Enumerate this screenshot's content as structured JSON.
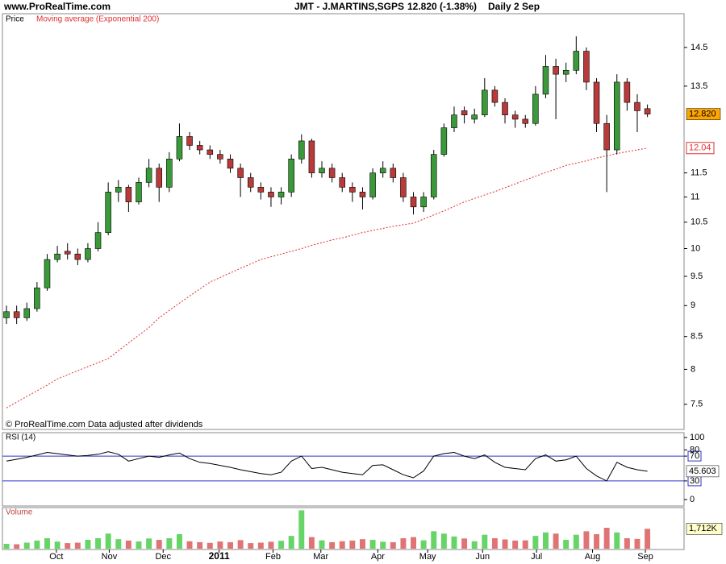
{
  "header": {
    "site": "www.ProRealTime.com",
    "instrument": "JMT - J.MARTINS,SGPS",
    "quote": "12.820 (-1.38%)",
    "period": "Daily  2 Sep"
  },
  "chart_data": [
    {
      "type": "candlestick",
      "legend_title": "Price",
      "footnote": "© ProRealTime.com  Data adjusted after dividends",
      "log_scale": true,
      "ylim": [
        7.17,
        15.41
      ],
      "yticks": [
        7.5,
        8,
        8.5,
        9,
        9.5,
        10,
        10.5,
        11,
        11.5,
        13.5,
        14.5
      ],
      "xlim": [
        -0.4,
        66.6
      ],
      "xticks": [
        {
          "value": 4.9,
          "label": "Oct"
        },
        {
          "value": 10.1,
          "label": "Nov"
        },
        {
          "value": 15.4,
          "label": "Dec"
        },
        {
          "value": 20.9,
          "label": "2011"
        },
        {
          "value": 26.2,
          "label": "Feb"
        },
        {
          "value": 30.9,
          "label": "Mar"
        },
        {
          "value": 36.5,
          "label": "Apr"
        },
        {
          "value": 41.4,
          "label": "May"
        },
        {
          "value": 46.8,
          "label": "Jun"
        },
        {
          "value": 52.1,
          "label": "Jul"
        },
        {
          "value": 57.6,
          "label": "Aug"
        },
        {
          "value": 62.8,
          "label": "Sep"
        }
      ],
      "up_color": "#3a9a3a",
      "down_color": "#b83a3a",
      "open": [
        8.8,
        8.9,
        8.8,
        8.95,
        9.3,
        9.8,
        9.95,
        9.9,
        9.8,
        10.0,
        10.3,
        11.1,
        11.2,
        10.9,
        11.3,
        11.6,
        11.2,
        11.8,
        12.3,
        12.1,
        12.0,
        11.9,
        11.8,
        11.6,
        11.4,
        11.2,
        11.1,
        11.0,
        11.1,
        11.8,
        12.2,
        11.5,
        11.6,
        11.4,
        11.2,
        11.1,
        11.0,
        11.5,
        11.6,
        11.4,
        11.0,
        10.8,
        11.0,
        11.9,
        12.5,
        12.9,
        12.7,
        12.8,
        13.4,
        13.1,
        12.8,
        12.7,
        12.6,
        13.3,
        14.0,
        13.8,
        13.9,
        14.4,
        13.6,
        12.6,
        12.0,
        13.6,
        13.1,
        12.95
      ],
      "high": [
        9.0,
        9.0,
        9.05,
        9.4,
        9.9,
        10.05,
        10.1,
        10.0,
        10.1,
        10.5,
        11.3,
        11.35,
        11.25,
        11.4,
        11.8,
        11.7,
        11.95,
        12.6,
        12.4,
        12.2,
        12.1,
        12.0,
        11.9,
        11.7,
        11.5,
        11.3,
        11.2,
        11.2,
        11.9,
        12.35,
        12.25,
        11.75,
        11.7,
        11.5,
        11.3,
        11.2,
        11.6,
        11.75,
        11.7,
        11.5,
        11.1,
        11.1,
        12.0,
        12.6,
        13.0,
        13.0,
        12.95,
        13.7,
        13.5,
        13.2,
        12.9,
        12.8,
        13.5,
        14.3,
        14.2,
        14.1,
        14.8,
        14.5,
        13.7,
        12.8,
        13.8,
        13.7,
        13.3,
        13.05
      ],
      "low": [
        8.7,
        8.7,
        8.75,
        8.9,
        9.25,
        9.75,
        9.8,
        9.7,
        9.75,
        9.95,
        10.25,
        10.9,
        10.7,
        10.85,
        11.2,
        10.9,
        11.1,
        11.75,
        12.0,
        11.9,
        11.8,
        11.7,
        11.5,
        11.0,
        11.1,
        10.95,
        10.8,
        10.85,
        11.0,
        11.7,
        11.4,
        11.4,
        11.3,
        11.1,
        10.9,
        10.75,
        10.95,
        11.4,
        11.3,
        10.9,
        10.65,
        10.7,
        10.95,
        11.85,
        12.4,
        12.6,
        12.6,
        12.75,
        13.0,
        12.6,
        12.5,
        12.5,
        12.55,
        13.2,
        12.7,
        13.6,
        13.8,
        13.4,
        12.4,
        11.1,
        11.9,
        12.9,
        12.4,
        12.75
      ],
      "close": [
        8.9,
        8.8,
        8.95,
        9.3,
        9.8,
        9.9,
        9.9,
        9.8,
        10.0,
        10.3,
        11.1,
        11.2,
        10.9,
        11.3,
        11.6,
        11.2,
        11.8,
        12.3,
        12.1,
        12.0,
        11.9,
        11.8,
        11.6,
        11.4,
        11.2,
        11.1,
        11.0,
        11.1,
        11.8,
        12.2,
        11.5,
        11.6,
        11.4,
        11.2,
        11.1,
        11.0,
        11.5,
        11.6,
        11.4,
        11.0,
        10.8,
        11.0,
        11.9,
        12.5,
        12.8,
        12.8,
        12.8,
        13.4,
        13.1,
        12.8,
        12.7,
        12.6,
        13.3,
        14.0,
        13.8,
        13.9,
        14.4,
        13.6,
        12.6,
        12.0,
        13.6,
        13.1,
        12.9,
        12.82
      ],
      "last_close_badge": {
        "value": 12.82,
        "label": "12.820"
      },
      "ma": {
        "name": "Moving average (Exponential 200)",
        "color": "#e03030",
        "values": [
          7.45,
          7.53,
          7.61,
          7.69,
          7.77,
          7.86,
          7.92,
          7.98,
          8.04,
          8.1,
          8.16,
          8.28,
          8.4,
          8.52,
          8.64,
          8.8,
          8.92,
          9.04,
          9.16,
          9.28,
          9.4,
          9.48,
          9.56,
          9.64,
          9.72,
          9.8,
          9.85,
          9.9,
          9.95,
          10.0,
          10.06,
          10.11,
          10.16,
          10.2,
          10.25,
          10.3,
          10.34,
          10.38,
          10.42,
          10.45,
          10.48,
          10.56,
          10.64,
          10.72,
          10.81,
          10.9,
          10.97,
          11.04,
          11.11,
          11.19,
          11.27,
          11.35,
          11.43,
          11.51,
          11.58,
          11.66,
          11.71,
          11.76,
          11.82,
          11.87,
          11.92,
          11.96,
          12.0,
          12.04
        ],
        "badge": 12.04
      }
    },
    {
      "type": "line",
      "legend_title": "RSI (14)",
      "ylim": [
        0,
        100
      ],
      "yticks": [
        0,
        30,
        70,
        80,
        100
      ],
      "levels": [
        30,
        70
      ],
      "level_color": "#3333cc",
      "color": "#000000",
      "values": [
        62,
        65,
        68,
        72,
        76,
        74,
        72,
        70,
        71,
        73,
        77,
        73,
        62,
        66,
        70,
        68,
        72,
        75,
        66,
        60,
        58,
        55,
        52,
        48,
        45,
        42,
        40,
        44,
        62,
        70,
        50,
        52,
        48,
        44,
        42,
        40,
        55,
        56,
        48,
        40,
        35,
        46,
        70,
        74,
        76,
        70,
        66,
        72,
        60,
        52,
        50,
        48,
        66,
        72,
        62,
        64,
        70,
        50,
        38,
        30,
        60,
        52,
        48,
        45.603
      ]
    },
    {
      "type": "bar",
      "legend_title": "Volume",
      "ylim": [
        0,
        3400
      ],
      "up_color": "#66d466",
      "down_color": "#e07474",
      "values": [
        420,
        380,
        520,
        700,
        900,
        610,
        480,
        520,
        760,
        900,
        1300,
        820,
        700,
        620,
        880,
        760,
        900,
        1250,
        640,
        560,
        500,
        620,
        560,
        740,
        480,
        520,
        600,
        680,
        1100,
        3300,
        1000,
        720,
        560,
        640,
        700,
        820,
        760,
        600,
        560,
        900,
        1000,
        720,
        1500,
        1300,
        1050,
        880,
        640,
        1200,
        900,
        800,
        700,
        720,
        1100,
        1400,
        1300,
        760,
        1200,
        1500,
        1250,
        1800,
        1400,
        900,
        840,
        1712
      ],
      "last_badge": {
        "value": 1712,
        "label": "1,712K"
      }
    }
  ]
}
